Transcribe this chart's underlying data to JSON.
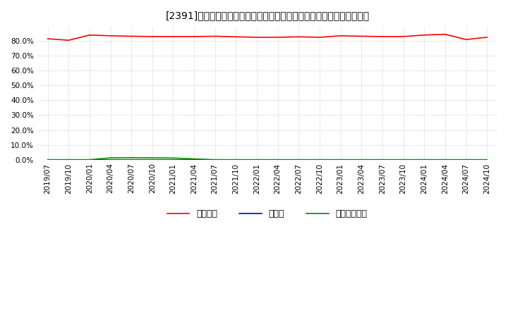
{
  "title": "[2391]　自己資本、のれん、繰延税金資産の総資産に対する比率の推移",
  "x_labels": [
    "2019/07",
    "2019/10",
    "2020/01",
    "2020/04",
    "2020/07",
    "2020/10",
    "2021/01",
    "2021/04",
    "2021/07",
    "2021/10",
    "2022/01",
    "2022/04",
    "2022/07",
    "2022/10",
    "2023/01",
    "2023/04",
    "2023/07",
    "2023/10",
    "2024/01",
    "2024/04",
    "2024/07",
    "2024/10"
  ],
  "jiko_shihon": [
    81.5,
    80.5,
    84.0,
    83.5,
    83.2,
    83.0,
    83.0,
    83.0,
    83.2,
    82.8,
    82.5,
    82.5,
    82.8,
    82.5,
    83.5,
    83.2,
    83.0,
    83.0,
    84.0,
    84.5,
    81.0,
    82.5
  ],
  "noren": [
    0.0,
    0.0,
    0.0,
    0.0,
    0.0,
    0.0,
    0.0,
    0.0,
    0.0,
    0.0,
    0.0,
    0.0,
    0.0,
    0.0,
    0.0,
    0.0,
    0.0,
    0.0,
    0.0,
    0.0,
    0.0,
    0.0
  ],
  "kurinobezeikin": [
    0.0,
    0.0,
    0.0,
    1.2,
    1.3,
    1.2,
    1.1,
    0.5,
    0.0,
    0.0,
    0.0,
    0.0,
    0.0,
    0.0,
    0.0,
    0.0,
    0.0,
    0.0,
    0.0,
    0.0,
    0.0,
    0.0
  ],
  "jiko_color": "#ff0000",
  "noren_color": "#0000cc",
  "kurinobe_color": "#008800",
  "bg_color": "#ffffff",
  "plot_bg_color": "#ffffff",
  "grid_color": "#bbbbbb",
  "ylim_min": 0,
  "ylim_max": 90,
  "yticks": [
    0,
    10,
    20,
    30,
    40,
    50,
    60,
    70,
    80
  ],
  "legend_labels": [
    "自己資本",
    "のれん",
    "繰延税金資産"
  ],
  "title_fontsize": 10,
  "tick_fontsize": 7.5,
  "legend_fontsize": 9
}
